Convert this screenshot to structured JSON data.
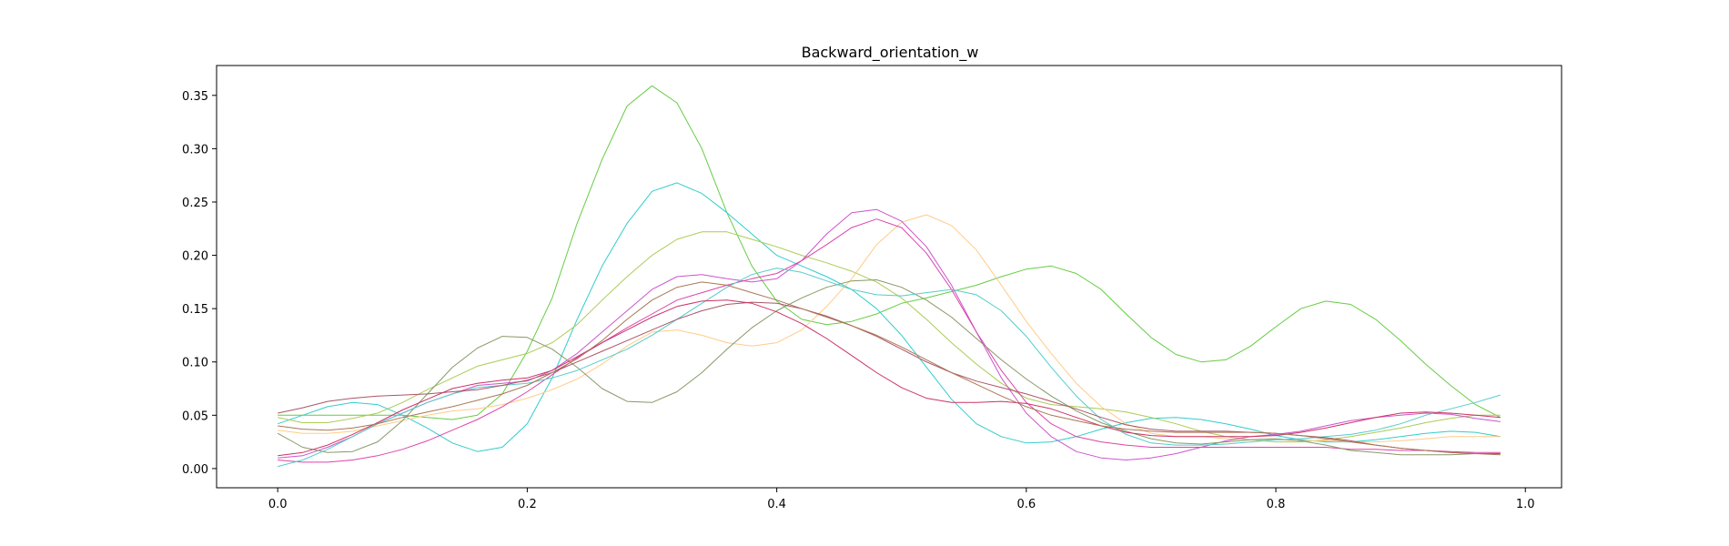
{
  "chart_data": {
    "type": "line",
    "title": "Backward_orientation_w",
    "xlabel": "",
    "ylabel": "",
    "xlim": [
      -0.049,
      1.029
    ],
    "ylim": [
      -0.018,
      0.378
    ],
    "grid": false,
    "legend": "none",
    "x_ticks": [
      {
        "value": 0.0,
        "label": "0.0"
      },
      {
        "value": 0.2,
        "label": "0.2"
      },
      {
        "value": 0.4,
        "label": "0.4"
      },
      {
        "value": 0.6,
        "label": "0.6"
      },
      {
        "value": 0.8,
        "label": "0.8"
      },
      {
        "value": 1.0,
        "label": "1.0"
      }
    ],
    "y_ticks": [
      {
        "value": 0.0,
        "label": "0.00"
      },
      {
        "value": 0.05,
        "label": "0.05"
      },
      {
        "value": 0.1,
        "label": "0.10"
      },
      {
        "value": 0.15,
        "label": "0.15"
      },
      {
        "value": 0.2,
        "label": "0.20"
      },
      {
        "value": 0.25,
        "label": "0.25"
      },
      {
        "value": 0.3,
        "label": "0.30"
      },
      {
        "value": 0.35,
        "label": "0.35"
      }
    ],
    "x": [
      0.0,
      0.02,
      0.04,
      0.06,
      0.08,
      0.1,
      0.12,
      0.14,
      0.16,
      0.18,
      0.2,
      0.22,
      0.24,
      0.26,
      0.28,
      0.3,
      0.32,
      0.34,
      0.36,
      0.38,
      0.4,
      0.42,
      0.44,
      0.46,
      0.48,
      0.5,
      0.52,
      0.54,
      0.56,
      0.58,
      0.6,
      0.62,
      0.64,
      0.66,
      0.68,
      0.7,
      0.72,
      0.74,
      0.76,
      0.78,
      0.8,
      0.82,
      0.84,
      0.86,
      0.88,
      0.9,
      0.92,
      0.94,
      0.96,
      0.98
    ],
    "series": [
      {
        "color": "#66cc44",
        "values": [
          0.05,
          0.05,
          0.05,
          0.05,
          0.05,
          0.05,
          0.048,
          0.046,
          0.05,
          0.07,
          0.11,
          0.16,
          0.23,
          0.29,
          0.34,
          0.359,
          0.343,
          0.3,
          0.24,
          0.19,
          0.157,
          0.14,
          0.135,
          0.138,
          0.145,
          0.155,
          0.16,
          0.166,
          0.172,
          0.18,
          0.187,
          0.19,
          0.183,
          0.168,
          0.145,
          0.123,
          0.107,
          0.1,
          0.102,
          0.115,
          0.133,
          0.15,
          0.157,
          0.154,
          0.14,
          0.12,
          0.098,
          0.078,
          0.06,
          0.048
        ]
      },
      {
        "color": "#33cccc",
        "values": [
          0.042,
          0.05,
          0.058,
          0.062,
          0.06,
          0.05,
          0.038,
          0.024,
          0.016,
          0.02,
          0.042,
          0.085,
          0.14,
          0.19,
          0.23,
          0.26,
          0.268,
          0.258,
          0.24,
          0.22,
          0.2,
          0.19,
          0.18,
          0.168,
          0.15,
          0.125,
          0.095,
          0.065,
          0.042,
          0.03,
          0.024,
          0.025,
          0.03,
          0.037,
          0.043,
          0.047,
          0.048,
          0.046,
          0.042,
          0.037,
          0.031,
          0.027,
          0.025,
          0.025,
          0.027,
          0.03,
          0.033,
          0.035,
          0.034,
          0.03
        ]
      },
      {
        "color": "#aacc55",
        "values": [
          0.048,
          0.043,
          0.043,
          0.047,
          0.052,
          0.062,
          0.074,
          0.085,
          0.096,
          0.102,
          0.108,
          0.118,
          0.135,
          0.158,
          0.18,
          0.2,
          0.215,
          0.222,
          0.222,
          0.215,
          0.208,
          0.2,
          0.193,
          0.185,
          0.175,
          0.16,
          0.14,
          0.118,
          0.098,
          0.08,
          0.066,
          0.06,
          0.058,
          0.056,
          0.053,
          0.048,
          0.042,
          0.035,
          0.03,
          0.027,
          0.025,
          0.025,
          0.027,
          0.03,
          0.034,
          0.038,
          0.043,
          0.047,
          0.05,
          0.05
        ]
      },
      {
        "color": "#ffcc88",
        "values": [
          0.036,
          0.033,
          0.033,
          0.035,
          0.04,
          0.045,
          0.05,
          0.054,
          0.056,
          0.06,
          0.066,
          0.074,
          0.084,
          0.098,
          0.115,
          0.128,
          0.13,
          0.125,
          0.118,
          0.115,
          0.118,
          0.13,
          0.152,
          0.178,
          0.21,
          0.231,
          0.238,
          0.228,
          0.205,
          0.172,
          0.138,
          0.108,
          0.08,
          0.058,
          0.042,
          0.033,
          0.03,
          0.03,
          0.028,
          0.027,
          0.027,
          0.026,
          0.026,
          0.025,
          0.025,
          0.026,
          0.028,
          0.03,
          0.03,
          0.03
        ]
      },
      {
        "color": "#cc55cc",
        "values": [
          0.01,
          0.012,
          0.02,
          0.03,
          0.042,
          0.052,
          0.062,
          0.07,
          0.078,
          0.08,
          0.082,
          0.092,
          0.108,
          0.128,
          0.148,
          0.168,
          0.18,
          0.182,
          0.178,
          0.175,
          0.178,
          0.195,
          0.22,
          0.24,
          0.243,
          0.232,
          0.208,
          0.172,
          0.128,
          0.085,
          0.052,
          0.03,
          0.016,
          0.01,
          0.008,
          0.01,
          0.014,
          0.02,
          0.026,
          0.03,
          0.032,
          0.035,
          0.04,
          0.045,
          0.048,
          0.05,
          0.052,
          0.051,
          0.047,
          0.044
        ]
      },
      {
        "color": "#dd44aa",
        "values": [
          0.008,
          0.006,
          0.006,
          0.008,
          0.012,
          0.018,
          0.026,
          0.036,
          0.046,
          0.058,
          0.072,
          0.088,
          0.104,
          0.118,
          0.132,
          0.145,
          0.158,
          0.165,
          0.172,
          0.178,
          0.183,
          0.195,
          0.21,
          0.226,
          0.234,
          0.226,
          0.202,
          0.168,
          0.128,
          0.092,
          0.062,
          0.042,
          0.03,
          0.025,
          0.022,
          0.02,
          0.02,
          0.02,
          0.02,
          0.02,
          0.02,
          0.02,
          0.02,
          0.018,
          0.018,
          0.017,
          0.017,
          0.016,
          0.015,
          0.015
        ]
      },
      {
        "color": "#889966",
        "values": [
          0.033,
          0.02,
          0.015,
          0.016,
          0.025,
          0.045,
          0.07,
          0.095,
          0.113,
          0.124,
          0.123,
          0.112,
          0.095,
          0.075,
          0.063,
          0.062,
          0.072,
          0.09,
          0.112,
          0.132,
          0.148,
          0.16,
          0.17,
          0.176,
          0.177,
          0.17,
          0.158,
          0.142,
          0.122,
          0.102,
          0.084,
          0.068,
          0.054,
          0.043,
          0.035,
          0.028,
          0.024,
          0.023,
          0.025,
          0.027,
          0.028,
          0.026,
          0.022,
          0.017,
          0.015,
          0.013,
          0.013,
          0.013,
          0.014,
          0.014
        ]
      },
      {
        "color": "#55cccc",
        "values": [
          0.002,
          0.008,
          0.018,
          0.03,
          0.042,
          0.052,
          0.062,
          0.07,
          0.076,
          0.078,
          0.08,
          0.085,
          0.092,
          0.102,
          0.112,
          0.125,
          0.14,
          0.155,
          0.17,
          0.182,
          0.188,
          0.184,
          0.176,
          0.168,
          0.163,
          0.162,
          0.165,
          0.168,
          0.163,
          0.148,
          0.124,
          0.095,
          0.068,
          0.046,
          0.032,
          0.024,
          0.022,
          0.022,
          0.023,
          0.025,
          0.027,
          0.028,
          0.03,
          0.032,
          0.036,
          0.042,
          0.05,
          0.056,
          0.062,
          0.069
        ]
      },
      {
        "color": "#aa5566",
        "values": [
          0.052,
          0.057,
          0.063,
          0.066,
          0.068,
          0.069,
          0.07,
          0.072,
          0.074,
          0.078,
          0.083,
          0.09,
          0.1,
          0.11,
          0.12,
          0.13,
          0.14,
          0.148,
          0.154,
          0.156,
          0.155,
          0.15,
          0.143,
          0.134,
          0.124,
          0.112,
          0.1,
          0.09,
          0.082,
          0.076,
          0.07,
          0.063,
          0.056,
          0.048,
          0.041,
          0.037,
          0.035,
          0.035,
          0.035,
          0.034,
          0.033,
          0.031,
          0.029,
          0.026,
          0.022,
          0.019,
          0.017,
          0.015,
          0.014,
          0.014
        ]
      },
      {
        "color": "#cc3366",
        "values": [
          0.012,
          0.015,
          0.022,
          0.032,
          0.043,
          0.055,
          0.065,
          0.075,
          0.08,
          0.083,
          0.085,
          0.092,
          0.105,
          0.118,
          0.13,
          0.142,
          0.152,
          0.157,
          0.158,
          0.155,
          0.147,
          0.136,
          0.122,
          0.106,
          0.09,
          0.076,
          0.066,
          0.062,
          0.062,
          0.063,
          0.061,
          0.056,
          0.048,
          0.04,
          0.034,
          0.031,
          0.03,
          0.03,
          0.03,
          0.03,
          0.031,
          0.034,
          0.038,
          0.043,
          0.048,
          0.052,
          0.053,
          0.052,
          0.05,
          0.048
        ]
      },
      {
        "color": "#aa7755",
        "values": [
          0.04,
          0.037,
          0.036,
          0.038,
          0.042,
          0.048,
          0.053,
          0.058,
          0.064,
          0.07,
          0.078,
          0.09,
          0.103,
          0.12,
          0.14,
          0.158,
          0.17,
          0.175,
          0.172,
          0.165,
          0.158,
          0.15,
          0.142,
          0.134,
          0.125,
          0.114,
          0.102,
          0.09,
          0.079,
          0.068,
          0.058,
          0.05,
          0.045,
          0.04,
          0.037,
          0.035,
          0.034,
          0.034,
          0.034,
          0.034,
          0.033,
          0.031,
          0.028,
          0.025,
          0.022,
          0.019,
          0.017,
          0.015,
          0.014,
          0.013
        ]
      }
    ]
  }
}
